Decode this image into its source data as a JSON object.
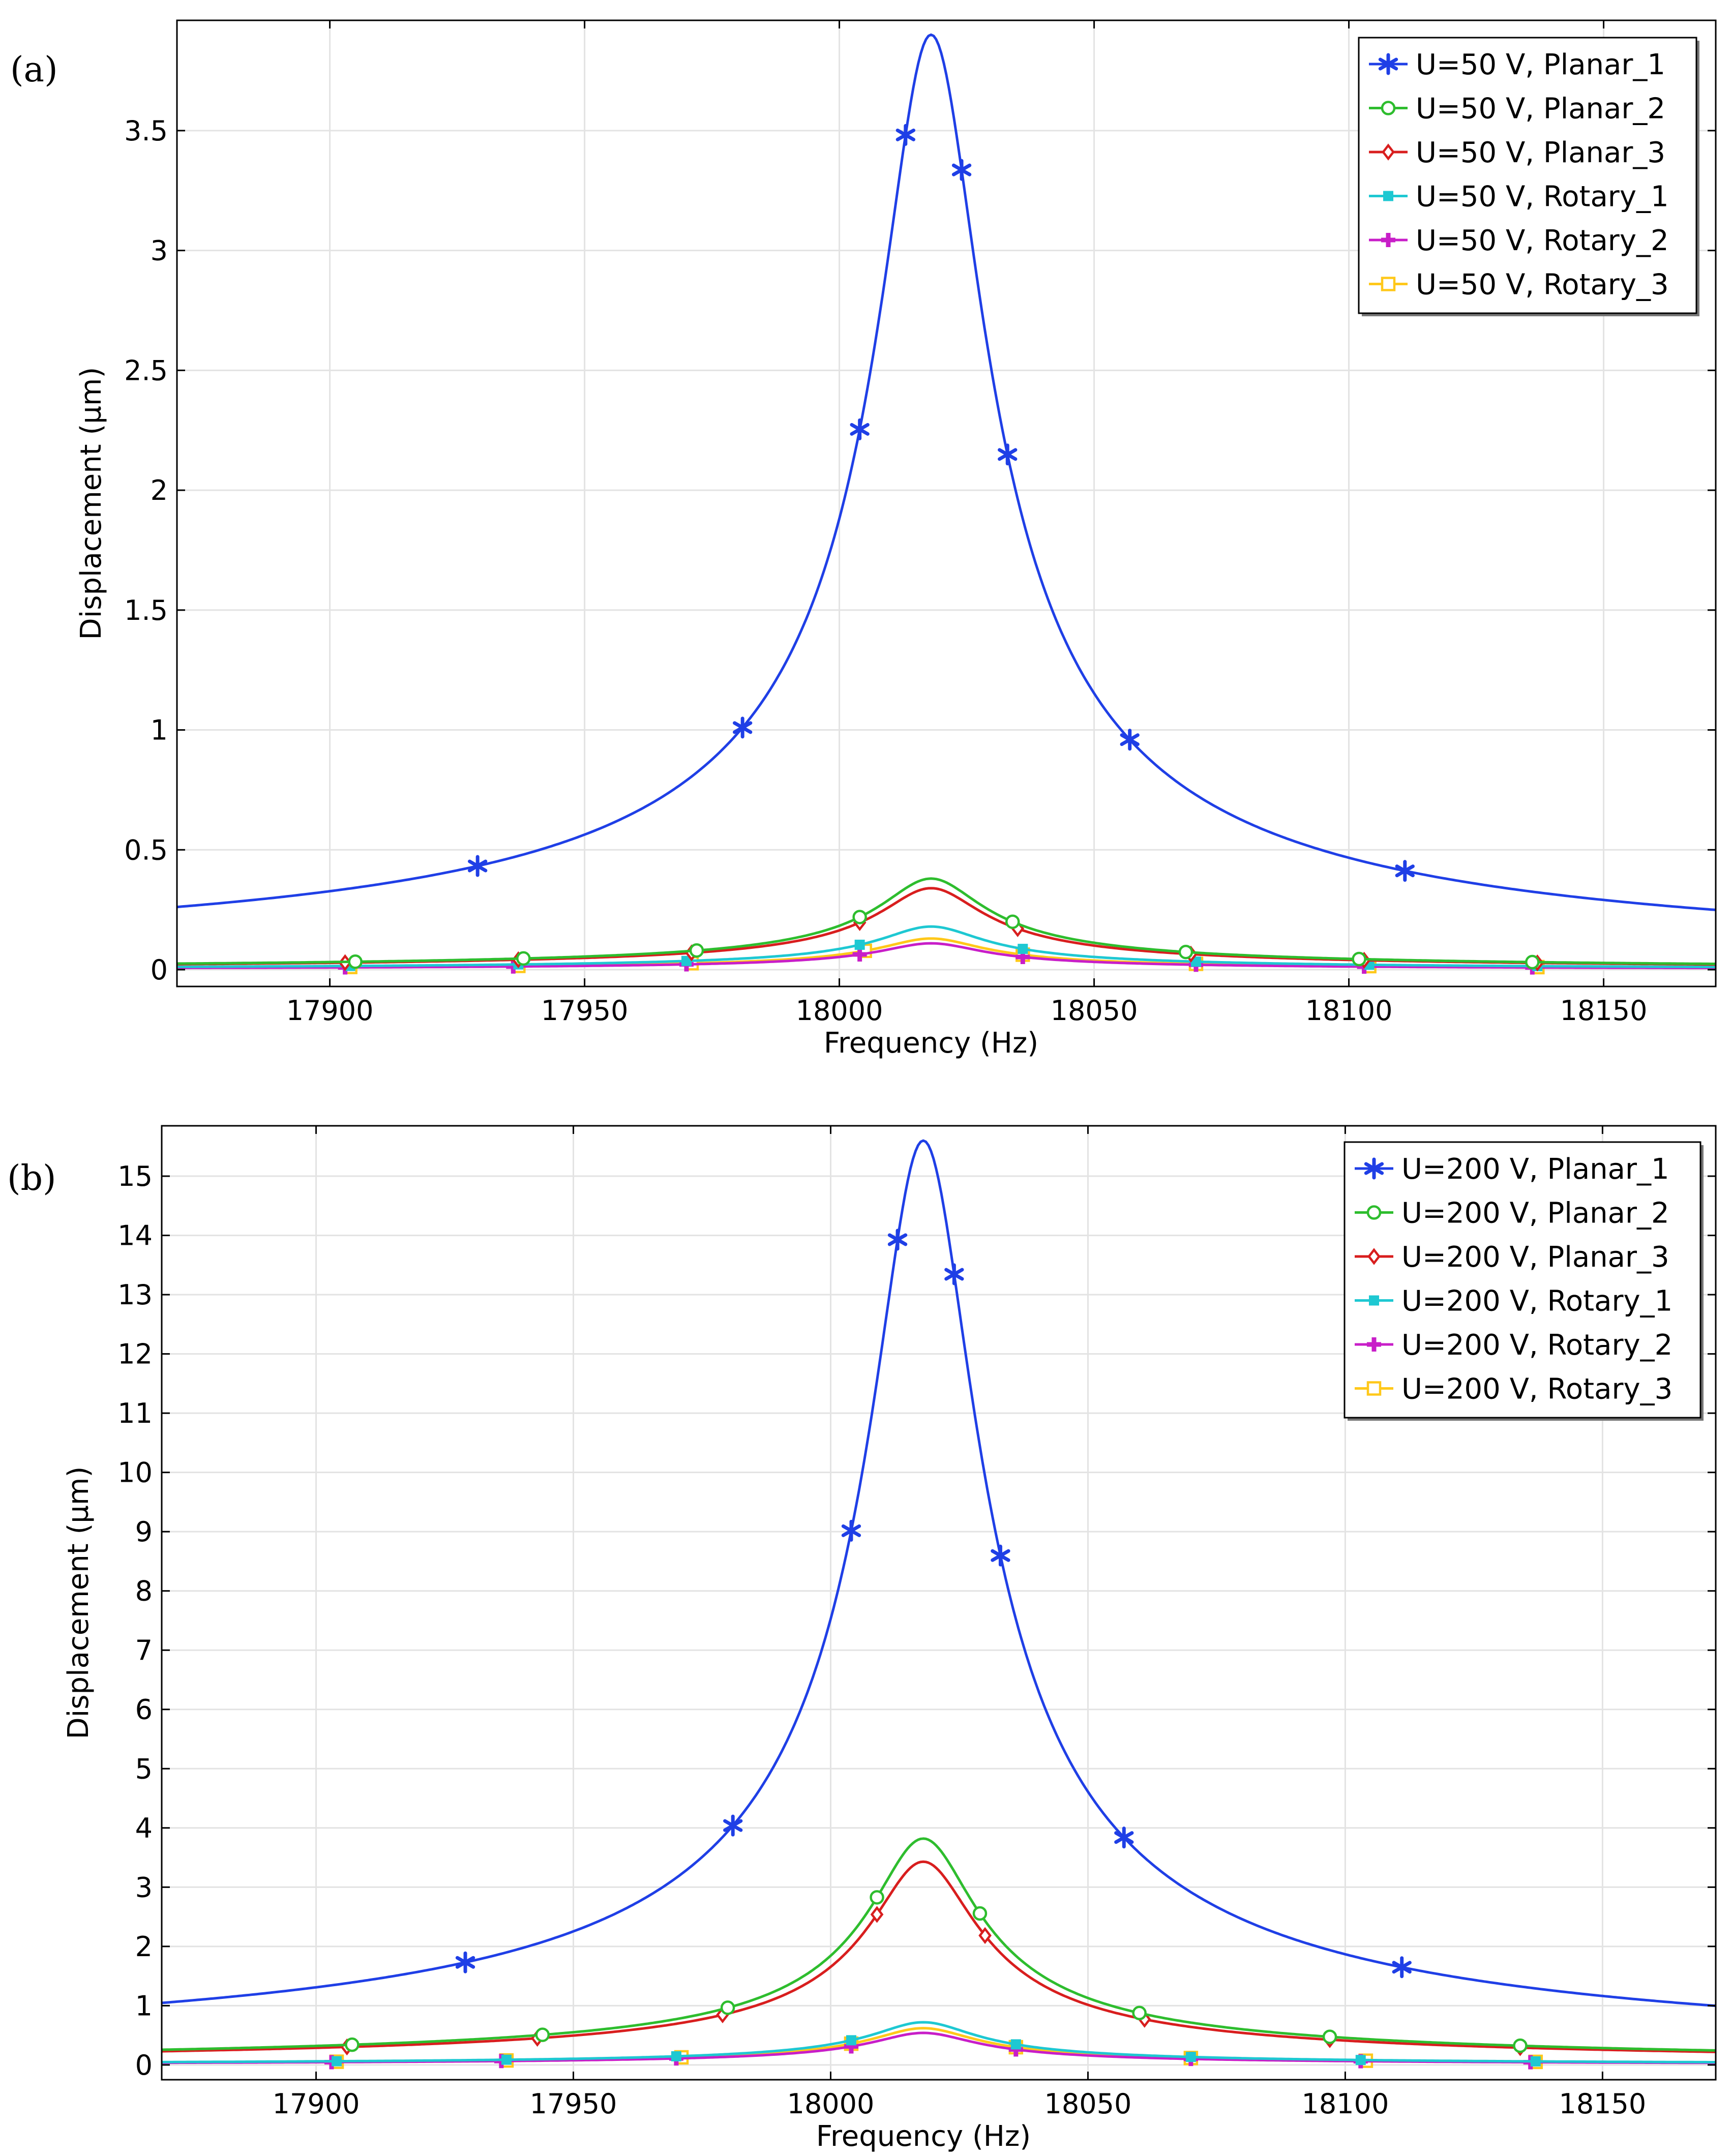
{
  "chart_data": [
    {
      "type": "line",
      "panel_label": "(a)",
      "xlabel": "Frequency (Hz)",
      "ylabel": "Displacement (µm)",
      "xlim": [
        17870,
        18172
      ],
      "ylim": [
        -0.07,
        3.96
      ],
      "x_ticks": [
        17900,
        17950,
        18000,
        18050,
        18100,
        18150
      ],
      "x_tick_labels": [
        "17900",
        "17950",
        "18000",
        "18050",
        "18100",
        "18150"
      ],
      "y_ticks": [
        0,
        0.5,
        1,
        1.5,
        2,
        2.5,
        3,
        3.5
      ],
      "y_tick_labels": [
        "0",
        "0.5",
        "1",
        "1.5",
        "2",
        "2.5",
        "3",
        "3.5"
      ],
      "grid": true,
      "legend_position": "top-right",
      "resonance": {
        "f0": 18018,
        "bandwidth": 0.0011
      },
      "series": [
        {
          "name": "U=50 V, Planar_1",
          "color": "#1f3fe6",
          "marker": "star",
          "peak": 3.9,
          "marker_x": [
            17929,
            17981,
            18004,
            18013,
            18024,
            18033,
            18057,
            18111
          ]
        },
        {
          "name": "U=50 V, Planar_2",
          "color": "#2ebd2e",
          "marker": "circle",
          "peak": 0.38,
          "marker_x": [
            17905,
            17938,
            17972,
            18004,
            18034,
            18068,
            18102,
            18136
          ]
        },
        {
          "name": "U=50 V, Planar_3",
          "color": "#d81e1e",
          "marker": "diamond",
          "peak": 0.34,
          "marker_x": [
            17903,
            17937,
            17971,
            18004,
            18035,
            18069,
            18103,
            18137
          ]
        },
        {
          "name": "U=50 V, Rotary_1",
          "color": "#1ec8d2",
          "marker": "square-filled",
          "peak": 0.18,
          "marker_x": [
            17904,
            17937,
            17970,
            18004,
            18036,
            18070,
            18104,
            18137
          ]
        },
        {
          "name": "U=50 V, Rotary_2",
          "color": "#c81ec8",
          "marker": "plus",
          "peak": 0.11,
          "marker_x": [
            17903,
            17936,
            17970,
            18004,
            18036,
            18070,
            18103,
            18136
          ]
        },
        {
          "name": "U=50 V, Rotary_3",
          "color": "#ffc81a",
          "marker": "square",
          "peak": 0.13,
          "marker_x": [
            17904,
            17937,
            17971,
            18005,
            18036,
            18070,
            18104,
            18137
          ]
        }
      ]
    },
    {
      "type": "line",
      "panel_label": "(b)",
      "xlabel": "Frequency (Hz)",
      "ylabel": "Displacement (µm)",
      "xlim": [
        17870,
        18172
      ],
      "ylim": [
        -0.25,
        15.85
      ],
      "x_ticks": [
        17900,
        17950,
        18000,
        18050,
        18100,
        18150
      ],
      "x_tick_labels": [
        "17900",
        "17950",
        "18000",
        "18050",
        "18100",
        "18150"
      ],
      "y_ticks": [
        0,
        1,
        2,
        3,
        4,
        5,
        6,
        7,
        8,
        9,
        10,
        11,
        12,
        13,
        14,
        15
      ],
      "y_tick_labels": [
        "0",
        "1",
        "2",
        "3",
        "4",
        "5",
        "6",
        "7",
        "8",
        "9",
        "10",
        "11",
        "12",
        "13",
        "14",
        "15"
      ],
      "grid": true,
      "legend_position": "top-right",
      "resonance": {
        "f0": 18018,
        "bandwidth": 0.0011
      },
      "series": [
        {
          "name": "U=200 V, Planar_1",
          "color": "#1f3fe6",
          "marker": "star",
          "peak": 15.6,
          "marker_x": [
            17929,
            17981,
            18004,
            18013,
            18024,
            18033,
            18057,
            18111
          ]
        },
        {
          "name": "U=200 V, Planar_2",
          "color": "#2ebd2e",
          "marker": "circle",
          "peak": 3.82,
          "marker_x": [
            17907,
            17944,
            17980,
            18009,
            18029,
            18060,
            18097,
            18134
          ]
        },
        {
          "name": "U=200 V, Planar_3",
          "color": "#d81e1e",
          "marker": "diamond",
          "peak": 3.43,
          "marker_x": [
            17906,
            17943,
            17979,
            18009,
            18030,
            18061,
            18097,
            18134
          ]
        },
        {
          "name": "U=200 V, Rotary_1",
          "color": "#1ec8d2",
          "marker": "square-filled",
          "peak": 0.72,
          "marker_x": [
            17904,
            17937,
            17970,
            18004,
            18036,
            18070,
            18103,
            18137
          ]
        },
        {
          "name": "U=200 V, Rotary_2",
          "color": "#c81ec8",
          "marker": "plus",
          "peak": 0.54,
          "marker_x": [
            17903,
            17936,
            17970,
            18004,
            18036,
            18070,
            18103,
            18136
          ]
        },
        {
          "name": "U=200 V, Rotary_3",
          "color": "#ffc81a",
          "marker": "square",
          "peak": 0.62,
          "marker_x": [
            17904,
            17937,
            17971,
            18004,
            18036,
            18070,
            18104,
            18137
          ]
        }
      ]
    }
  ]
}
